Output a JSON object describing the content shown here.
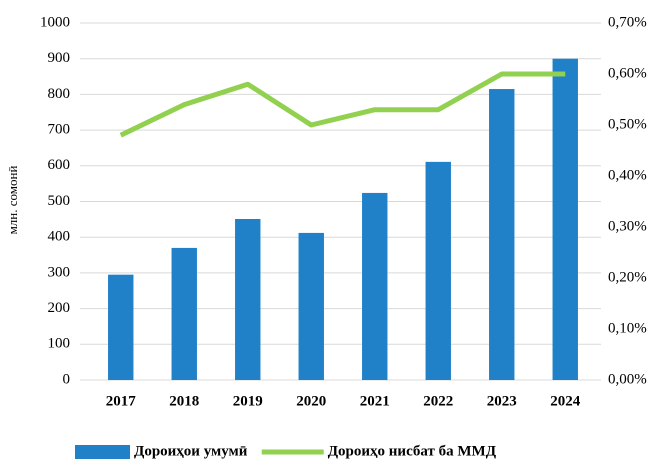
{
  "chart_data": {
    "type": "bar",
    "y_label": "млн. сомонӣ",
    "categories": [
      "2017",
      "2018",
      "2019",
      "2020",
      "2021",
      "2022",
      "2023",
      "2024"
    ],
    "series": [
      {
        "name": "Дороиҳои умумӣ",
        "color": "#2080c8",
        "type": "bar",
        "values": [
          295,
          370,
          451,
          412,
          524,
          611,
          815,
          900
        ]
      },
      {
        "name": "Дороиҳо нисбат ба ММД",
        "color": "#92d050",
        "type": "line",
        "axis": "y2",
        "values": [
          0.48,
          0.54,
          0.58,
          0.5,
          0.53,
          0.53,
          0.6,
          0.6
        ]
      }
    ],
    "ylim": [
      0,
      1000
    ],
    "yticks": [
      0,
      100,
      200,
      300,
      400,
      500,
      600,
      700,
      800,
      900,
      1000
    ],
    "y2lim": [
      0,
      0.7
    ],
    "y2ticks": [
      {
        "value": 0,
        "label": "0,00%"
      },
      {
        "value": 0.1,
        "label": "0,10%"
      },
      {
        "value": 0.2,
        "label": "0,20%"
      },
      {
        "value": 0.3,
        "label": "0,30%"
      },
      {
        "value": 0.4,
        "label": "0,40%"
      },
      {
        "value": 0.5,
        "label": "0,50%"
      },
      {
        "value": 0.6,
        "label": "0,60%"
      },
      {
        "value": 0.7,
        "label": "0,70%"
      }
    ],
    "grid": true,
    "legend": "bottom"
  }
}
